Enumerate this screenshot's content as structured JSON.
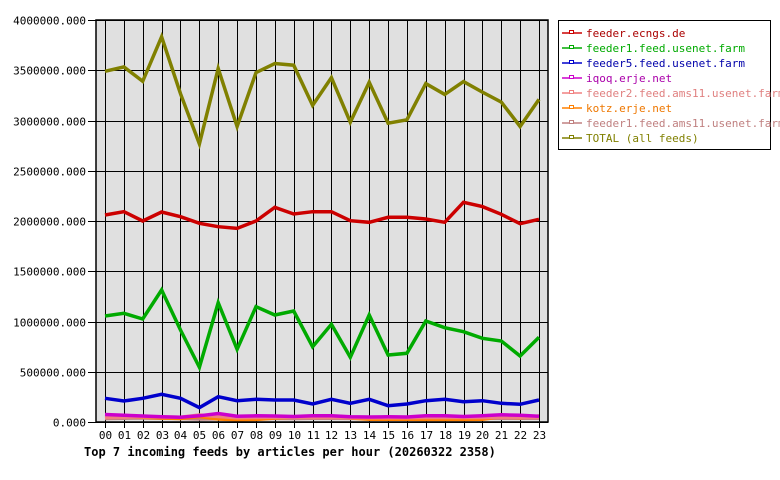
{
  "chart_data": {
    "type": "line",
    "title": "Top 7 incoming feeds by articles per hour (20260322 2358)",
    "xlabel": "",
    "ylabel": "",
    "ylim": [
      0,
      4000000
    ],
    "yticks": [
      "0.000",
      "500000.000",
      "1000000.000",
      "1500000.000",
      "2000000.000",
      "2500000.000",
      "3000000.000",
      "3500000.000",
      "4000000.000"
    ],
    "ytick_values": [
      0,
      500000,
      1000000,
      1500000,
      2000000,
      2500000,
      3000000,
      3500000,
      4000000
    ],
    "grid": true,
    "legend_position": "right",
    "categories": [
      "00",
      "01",
      "02",
      "03",
      "04",
      "05",
      "06",
      "07",
      "08",
      "09",
      "10",
      "11",
      "12",
      "13",
      "14",
      "15",
      "16",
      "17",
      "18",
      "19",
      "20",
      "21",
      "22",
      "23"
    ],
    "series": [
      {
        "name": "feeder.ecngs.de",
        "color": "#cc0000",
        "text_color": "#aa0000",
        "values": [
          2060000,
          2093000,
          2000000,
          2090000,
          2043000,
          1977000,
          1943000,
          1926000,
          2000000,
          2136000,
          2070000,
          2093000,
          2093000,
          2003000,
          1987000,
          2037000,
          2037000,
          2020000,
          1987000,
          2186000,
          2143000,
          2067000,
          1973000,
          2017000
        ]
      },
      {
        "name": "feeder1.feed.usenet.farm",
        "color": "#00aa00",
        "text_color": "#00aa00",
        "values": [
          1055000,
          1082000,
          1025000,
          1313000,
          915000,
          544000,
          1187000,
          723000,
          1147000,
          1065000,
          1104000,
          749000,
          972000,
          644000,
          1065000,
          667000,
          684000,
          1005000,
          938000,
          899000,
          833000,
          806000,
          657000,
          843000
        ]
      },
      {
        "name": "feeder5.feed.usenet.farm",
        "color": "#0000cc",
        "text_color": "#0000aa",
        "values": [
          236000,
          209000,
          236000,
          276000,
          236000,
          143000,
          252000,
          212000,
          226000,
          219000,
          219000,
          179000,
          226000,
          186000,
          226000,
          162000,
          179000,
          212000,
          226000,
          202000,
          212000,
          186000,
          176000,
          219000
        ]
      },
      {
        "name": "iqoq.erje.net",
        "color": "#cc00cc",
        "text_color": "#aa00aa",
        "values": [
          75000,
          68000,
          60000,
          52000,
          48000,
          62000,
          85000,
          58000,
          62000,
          60000,
          55000,
          62000,
          62000,
          52000,
          50000,
          52000,
          50000,
          62000,
          62000,
          55000,
          62000,
          72000,
          68000,
          58000
        ]
      },
      {
        "name": "feeder2.feed.ams11.usenet.farm",
        "color": "#f08080",
        "text_color": "#e08080",
        "values": [
          45000,
          48000,
          52000,
          50000,
          48000,
          70000,
          55000,
          42000,
          45000,
          48000,
          45000,
          45000,
          45000,
          42000,
          42000,
          42000,
          42000,
          45000,
          45000,
          45000,
          45000,
          45000,
          45000,
          45000
        ]
      },
      {
        "name": "kotz.erje.net",
        "color": "#ff8000",
        "text_color": "#ee7700",
        "values": [
          60000,
          55000,
          48000,
          40000,
          35000,
          55000,
          30000,
          22000,
          25000,
          40000,
          48000,
          48000,
          55000,
          40000,
          28000,
          28000,
          28000,
          25000,
          25000,
          25000,
          28000,
          52000,
          42000,
          60000
        ]
      },
      {
        "name": "feeder1.feed.ams11.usenet.farm",
        "color": "#c08080",
        "text_color": "#c08080",
        "values": [
          35000,
          38000,
          40000,
          38000,
          36000,
          30000,
          32000,
          35000,
          35000,
          36000,
          35000,
          38000,
          38000,
          36000,
          36000,
          36000,
          36000,
          38000,
          38000,
          38000,
          38000,
          38000,
          38000,
          38000
        ]
      },
      {
        "name": "TOTAL (all feeds)",
        "color": "#808000",
        "text_color": "#808000",
        "values": [
          3490000,
          3533000,
          3390000,
          3833000,
          3267000,
          2767000,
          3517000,
          2940000,
          3477000,
          3567000,
          3550000,
          3150000,
          3427000,
          2983000,
          3380000,
          2973000,
          3007000,
          3367000,
          3260000,
          3387000,
          3283000,
          3183000,
          2940000,
          3210000
        ]
      }
    ]
  },
  "colors": {
    "plot_background": "#e0e0e0",
    "grid": "#000000",
    "axis": "#000000"
  }
}
